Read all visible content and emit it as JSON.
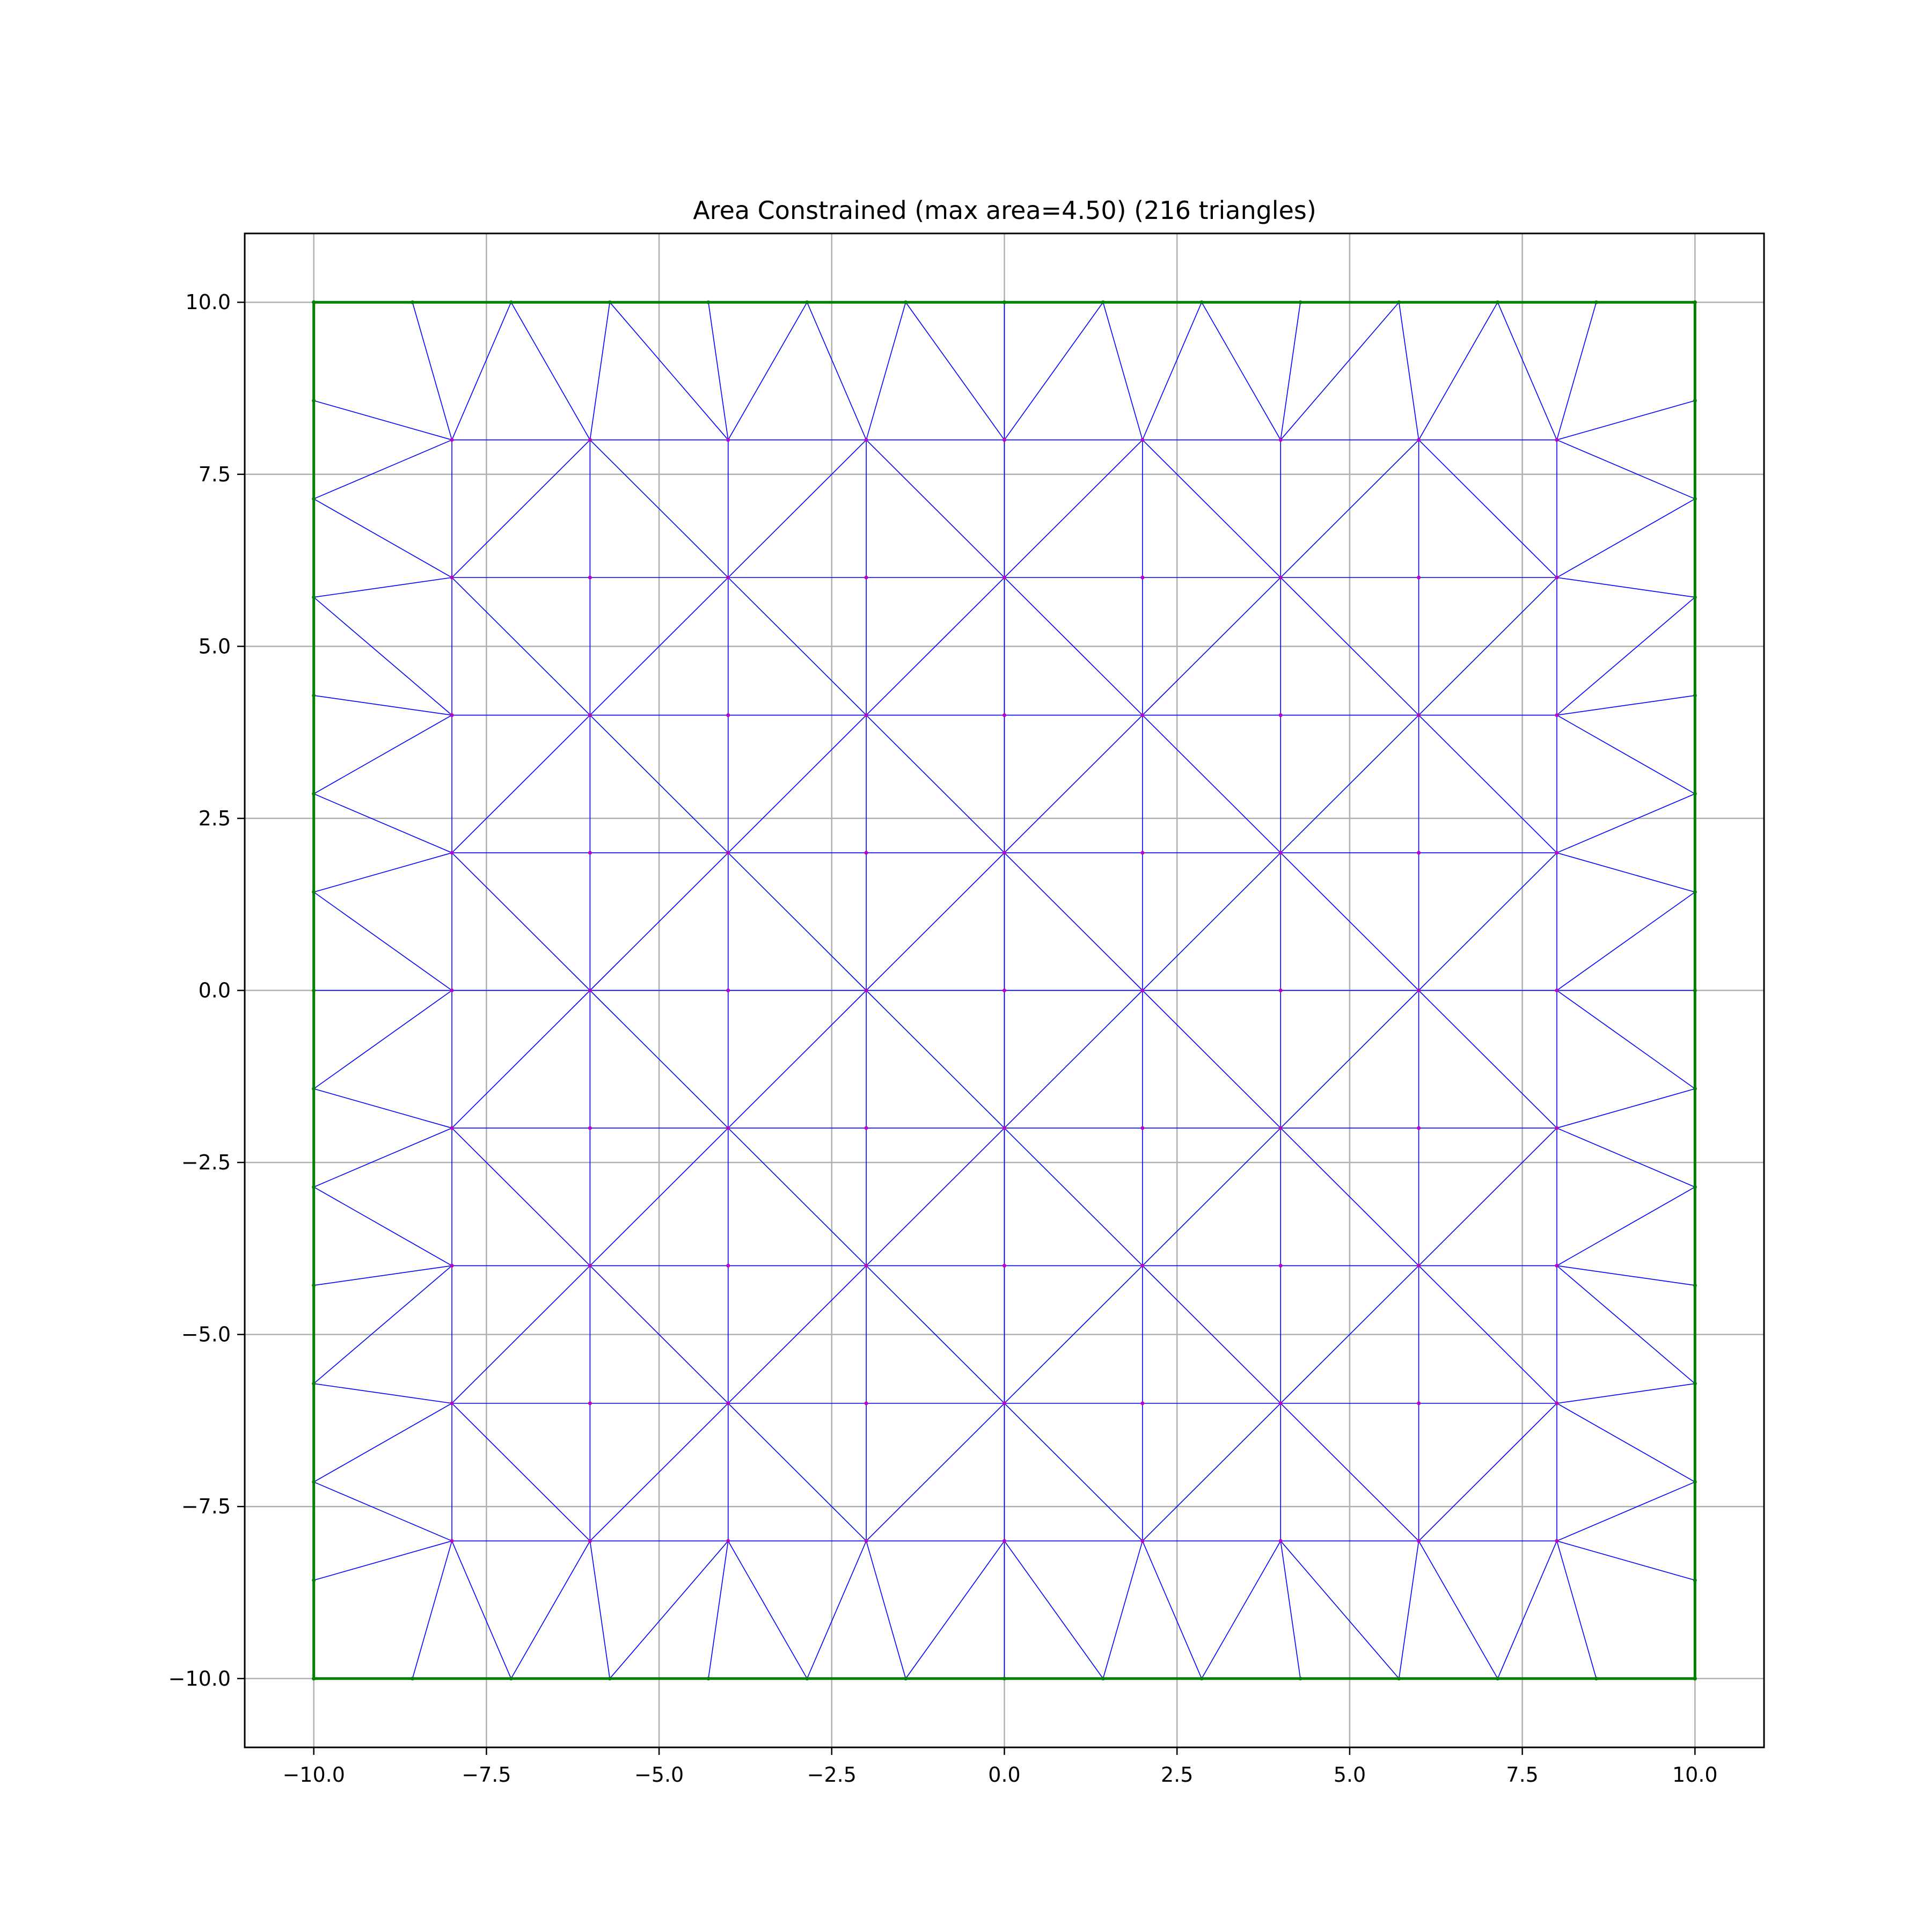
{
  "chart_data": {
    "type": "scatter",
    "title": "Area Constrained (max area=4.50) (216 triangles)",
    "xlabel": "",
    "ylabel": "",
    "xlim": [
      -11,
      11
    ],
    "ylim": [
      -11,
      11
    ],
    "grid": true,
    "xticks": [
      -10.0,
      -7.5,
      -5.0,
      -2.5,
      0.0,
      2.5,
      5.0,
      7.5,
      10.0
    ],
    "xtick_labels": [
      "−10.0",
      "−7.5",
      "−5.0",
      "−2.5",
      "0.0",
      "2.5",
      "5.0",
      "7.5",
      "10.0"
    ],
    "yticks": [
      -10.0,
      -7.5,
      -5.0,
      -2.5,
      0.0,
      2.5,
      5.0,
      7.5,
      10.0
    ],
    "ytick_labels": [
      "−10.0",
      "−7.5",
      "−5.0",
      "−2.5",
      "0.0",
      "2.5",
      "5.0",
      "7.5",
      "10.0"
    ],
    "colors": {
      "boundary": "#007f00",
      "mesh": "#0000ff",
      "nodes": "#c000c0"
    },
    "boundary": [
      [
        -10,
        -10
      ],
      [
        10,
        -10
      ],
      [
        10,
        10
      ],
      [
        -10,
        10
      ]
    ],
    "boundary_points": [
      -10,
      -8.571,
      -7.143,
      -5.714,
      -4.286,
      -2.857,
      -1.429,
      0,
      1.429,
      2.857,
      4.286,
      5.714,
      7.143,
      8.571,
      10
    ],
    "interior_grid": [
      -8,
      -6,
      -4,
      -2,
      0,
      2,
      4,
      6,
      8
    ],
    "triangle_count": 216
  }
}
